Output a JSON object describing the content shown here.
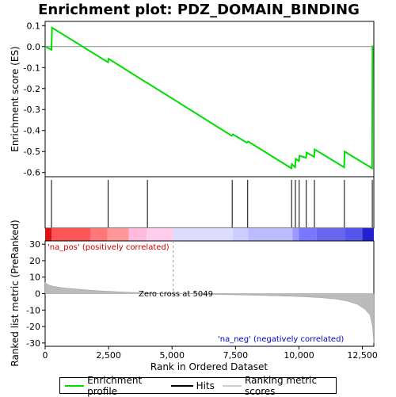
{
  "chart_data": {
    "type": "line",
    "title": "Enrichment plot: PDZ_DOMAIN_BINDING",
    "top_panel": {
      "ylabel": "Enrichment score (ES)",
      "ylim": [
        -0.62,
        0.12
      ],
      "yticks": [
        0.1,
        0.0,
        -0.1,
        -0.2,
        -0.3,
        -0.4,
        -0.5,
        -0.6
      ],
      "ytick_labels": [
        "0.1",
        "0.0",
        "-0.1",
        "-0.2",
        "-0.3",
        "-0.4",
        "-0.5",
        "-0.6"
      ],
      "series": [
        {
          "name": "Enrichment profile",
          "color": "#00dd00",
          "x": [
            0,
            250,
            270,
            2480,
            2500,
            4000,
            4050,
            7350,
            7400,
            7950,
            8000,
            9700,
            9720,
            9850,
            9870,
            10000,
            10020,
            10280,
            10300,
            10600,
            10620,
            11780,
            11800,
            12880,
            12900
          ],
          "y": [
            0.0,
            -0.015,
            0.09,
            -0.075,
            -0.058,
            -0.172,
            -0.175,
            -0.425,
            -0.418,
            -0.458,
            -0.452,
            -0.58,
            -0.56,
            -0.575,
            -0.535,
            -0.545,
            -0.52,
            -0.53,
            -0.505,
            -0.525,
            -0.49,
            -0.575,
            -0.5,
            -0.58,
            0.005
          ]
        }
      ]
    },
    "hits": [
      250,
      2480,
      4030,
      7370,
      7980,
      9710,
      9860,
      10010,
      10290,
      10610,
      11790,
      12890
    ],
    "bottom_panel": {
      "ylabel": "Ranked list metric (PreRanked)",
      "xlabel": "Rank in Ordered Dataset",
      "ylim": [
        -32,
        32
      ],
      "yticks": [
        30,
        20,
        10,
        0,
        -10,
        -20,
        -30
      ],
      "ytick_labels": [
        "30",
        "20",
        "10",
        "0",
        "-10",
        "-20",
        "-30"
      ],
      "xlim": [
        0,
        12950
      ],
      "xticks": [
        0,
        2500,
        5000,
        7500,
        10000,
        12500
      ],
      "xtick_labels": [
        "0",
        "2,500",
        "5,000",
        "7,500",
        "10,000",
        "12,500"
      ],
      "metric_x": [
        0,
        100,
        300,
        700,
        1200,
        2000,
        3000,
        4000,
        5049,
        6000,
        7000,
        8000,
        9000,
        10000,
        10800,
        11400,
        11900,
        12300,
        12600,
        12800,
        12900,
        12950
      ],
      "metric_y": [
        7,
        5.5,
        4.5,
        3.5,
        2.8,
        1.8,
        1.0,
        0.4,
        0.0,
        -0.3,
        -0.6,
        -0.9,
        -1.3,
        -1.8,
        -2.4,
        -3.2,
        -4.5,
        -6.5,
        -9.5,
        -13,
        -20,
        -30
      ],
      "zero_cross_label": "Zero cross at 5049",
      "zero_cross_x": 5049,
      "pos_label": "'na_pos' (positively correlated)",
      "neg_label": "'na_neg' (negatively correlated)",
      "pos_color": "#cc0000",
      "neg_color": "#0000cc"
    },
    "legend": {
      "entries": [
        "Enrichment profile",
        "Hits",
        "Ranking metric scores"
      ],
      "colors": [
        "#00dd00",
        "#000000",
        "#cccccc"
      ]
    }
  }
}
